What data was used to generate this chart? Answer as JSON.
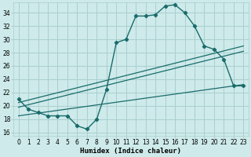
{
  "xlabel": "Humidex (Indice chaleur)",
  "bg_color": "#ceeaea",
  "grid_color": "#aacfcf",
  "line_color": "#1a6b6b",
  "xlim": [
    -0.5,
    23.5
  ],
  "ylim": [
    15.5,
    35.5
  ],
  "xticks": [
    0,
    1,
    2,
    3,
    4,
    5,
    6,
    7,
    8,
    9,
    10,
    11,
    12,
    13,
    14,
    15,
    16,
    17,
    18,
    19,
    20,
    21,
    22,
    23
  ],
  "yticks": [
    16,
    18,
    20,
    22,
    24,
    26,
    28,
    30,
    32,
    34
  ],
  "curve_x": [
    0,
    1,
    2,
    3,
    4,
    5,
    6,
    7,
    8,
    9,
    10,
    11,
    12,
    13,
    14,
    15,
    16,
    17,
    18,
    19,
    20,
    21,
    22,
    23
  ],
  "curve_y": [
    21.0,
    19.5,
    19.0,
    18.5,
    18.5,
    18.5,
    17.0,
    16.5,
    18.0,
    22.5,
    29.5,
    30.0,
    33.5,
    33.5,
    33.7,
    35.0,
    35.2,
    34.0,
    32.0,
    29.0,
    28.5,
    27.0,
    23.0,
    23.0
  ],
  "line1_x": [
    0,
    23
  ],
  "line1_y": [
    20.5,
    29.0
  ],
  "line2_x": [
    0,
    23
  ],
  "line2_y": [
    19.8,
    28.2
  ],
  "line3_x": [
    0,
    23
  ],
  "line3_y": [
    18.5,
    23.2
  ],
  "xlabel_fontsize": 6.5,
  "tick_fontsize": 5.5
}
